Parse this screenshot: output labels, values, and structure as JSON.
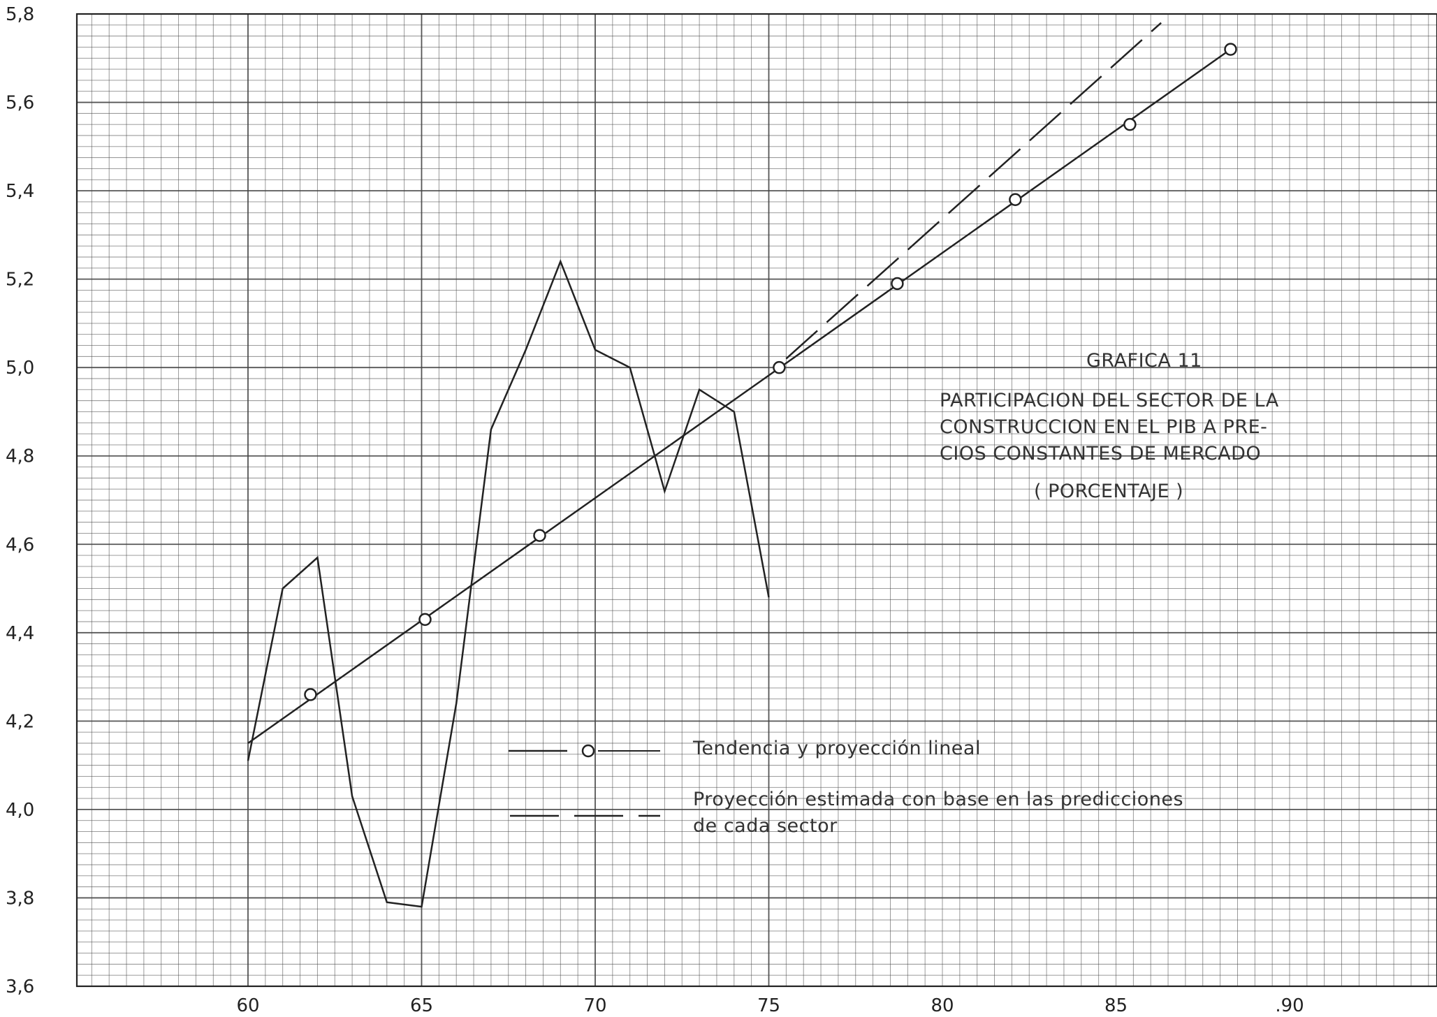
{
  "chart_data": {
    "type": "line",
    "title": "GRAFICA 11",
    "subtitle_lines": [
      "PARTICIPACION DEL SECTOR DE LA",
      "CONSTRUCCION EN EL PIB A PRE-",
      "CIOS CONSTANTES DE MERCADO"
    ],
    "unit_label": "( PORCENTAJE )",
    "xlabel": "",
    "ylabel": "",
    "xlim": [
      55,
      94
    ],
    "ylim": [
      3.6,
      5.8
    ],
    "x_ticks": [
      "60",
      "65",
      "70",
      "75",
      "80",
      "85",
      ".90"
    ],
    "x_tick_values": [
      60,
      65,
      70,
      75,
      80,
      85,
      90
    ],
    "y_ticks": [
      "5,8",
      "5,6",
      "5,4",
      "5,2",
      "5,0",
      "4,8",
      "4,6",
      "4,4",
      "4,2",
      "4,0",
      "3,8",
      "3,6"
    ],
    "y_tick_values": [
      5.8,
      5.6,
      5.4,
      5.2,
      5.0,
      4.8,
      4.6,
      4.4,
      4.2,
      4.0,
      3.8,
      3.6
    ],
    "grid": true,
    "series": [
      {
        "style": "solid",
        "x": [
          60,
          61,
          62,
          63,
          64,
          65,
          66,
          67,
          68,
          69,
          70,
          71,
          72,
          73,
          74,
          75
        ],
        "y": [
          4.11,
          4.5,
          4.57,
          4.03,
          3.79,
          3.78,
          4.24,
          4.86,
          5.04,
          5.24,
          5.04,
          5.0,
          4.72,
          4.95,
          4.9,
          4.48
        ]
      },
      {
        "style": "trend-circles",
        "x": [
          60,
          88.3
        ],
        "y": [
          4.15,
          5.72
        ],
        "markers_x": [
          61.8,
          65.1,
          68.4,
          75.3,
          78.7,
          82.1,
          85.4,
          88.3
        ],
        "markers_y": [
          4.26,
          4.43,
          4.62,
          5.0,
          5.19,
          5.38,
          5.55,
          5.72
        ]
      },
      {
        "style": "dashed",
        "x": [
          75.5,
          86.3
        ],
        "y": [
          5.02,
          5.78
        ]
      }
    ],
    "legend": {
      "placement": "center",
      "items": [
        {
          "marker": "line-circle",
          "label": "Tendencia y proyección lineal"
        },
        {
          "marker": "dashed",
          "label_lines": [
            "Proyección estimada con base en las predicciones",
            "de cada sector"
          ]
        }
      ]
    },
    "colors": {
      "ink": "#222222",
      "grid": "#444444",
      "paper": "#ffffff"
    }
  }
}
